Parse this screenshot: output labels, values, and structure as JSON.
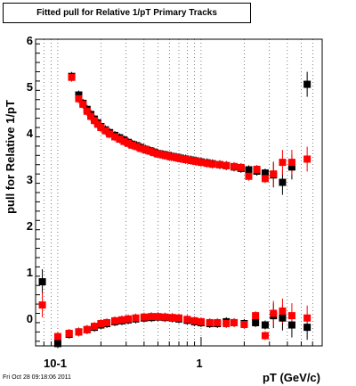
{
  "title": "Fitted pull for Relative 1/pT  Primary Tracks",
  "footer": "Fri Oct 28 09:18:06 2011",
  "chart_data": {
    "type": "scatter",
    "title": "Fitted pull for Relative 1/pT  Primary Tracks",
    "xlabel": "pT (GeV/c)",
    "ylabel": "pull for Relative 1/pT",
    "x_scale": "log",
    "xlim": [
      0.07,
      7
    ],
    "ylim": [
      -0.6,
      6
    ],
    "x_tick_labels": [
      "10-1",
      "1"
    ],
    "y_tick_labels": [
      "0",
      "1",
      "2",
      "3",
      "4",
      "5",
      "6"
    ],
    "grid": true,
    "colors": {
      "series_black": "#000000",
      "series_red": "#ff0000"
    },
    "series": [
      {
        "color": "black",
        "marker": "square",
        "points": [
          {
            "x": 0.125,
            "y": 5.2
          },
          {
            "x": 0.14,
            "y": 4.8
          },
          {
            "x": 0.15,
            "y": 4.62
          },
          {
            "x": 0.16,
            "y": 4.49
          },
          {
            "x": 0.17,
            "y": 4.38
          },
          {
            "x": 0.18,
            "y": 4.28
          },
          {
            "x": 0.19,
            "y": 4.2
          },
          {
            "x": 0.2,
            "y": 4.12
          },
          {
            "x": 0.215,
            "y": 4.05
          },
          {
            "x": 0.23,
            "y": 3.99
          },
          {
            "x": 0.25,
            "y": 3.93
          },
          {
            "x": 0.27,
            "y": 3.88
          },
          {
            "x": 0.29,
            "y": 3.83
          },
          {
            "x": 0.31,
            "y": 3.78
          },
          {
            "x": 0.33,
            "y": 3.74
          },
          {
            "x": 0.355,
            "y": 3.71
          },
          {
            "x": 0.38,
            "y": 3.67
          },
          {
            "x": 0.41,
            "y": 3.63
          },
          {
            "x": 0.44,
            "y": 3.6
          },
          {
            "x": 0.47,
            "y": 3.57
          },
          {
            "x": 0.5,
            "y": 3.54
          },
          {
            "x": 0.54,
            "y": 3.52
          },
          {
            "x": 0.58,
            "y": 3.5
          },
          {
            "x": 0.62,
            "y": 3.48
          },
          {
            "x": 0.67,
            "y": 3.46
          },
          {
            "x": 0.72,
            "y": 3.44
          },
          {
            "x": 0.78,
            "y": 3.42
          },
          {
            "x": 0.85,
            "y": 3.4
          },
          {
            "x": 0.92,
            "y": 3.38
          },
          {
            "x": 1.0,
            "y": 3.36
          },
          {
            "x": 1.1,
            "y": 3.34
          },
          {
            "x": 1.2,
            "y": 3.32
          },
          {
            "x": 1.35,
            "y": 3.3
          },
          {
            "x": 1.5,
            "y": 3.28
          },
          {
            "x": 1.7,
            "y": 3.25
          },
          {
            "x": 1.9,
            "y": 3.22
          },
          {
            "x": 2.15,
            "y": 3.19
          },
          {
            "x": 2.45,
            "y": 3.16
          },
          {
            "x": 2.8,
            "y": 3.12
          },
          {
            "x": 3.2,
            "y": 3.08
          },
          {
            "x": 3.7,
            "y": 2.92
          },
          {
            "x": 4.3,
            "y": 3.25
          },
          {
            "x": 5.5,
            "y": 5.03
          },
          {
            "x": 0.078,
            "y": 0.78
          },
          {
            "x": 0.1,
            "y": -0.55
          },
          {
            "x": 0.12,
            "y": -0.35
          },
          {
            "x": 0.14,
            "y": -0.3
          },
          {
            "x": 0.16,
            "y": -0.25
          },
          {
            "x": 0.18,
            "y": -0.2
          },
          {
            "x": 0.2,
            "y": -0.15
          },
          {
            "x": 0.22,
            "y": -0.12
          },
          {
            "x": 0.25,
            "y": -0.08
          },
          {
            "x": 0.28,
            "y": -0.06
          },
          {
            "x": 0.31,
            "y": -0.04
          },
          {
            "x": 0.35,
            "y": -0.02
          },
          {
            "x": 0.4,
            "y": 0.0
          },
          {
            "x": 0.45,
            "y": 0.01
          },
          {
            "x": 0.5,
            "y": 0.02
          },
          {
            "x": 0.56,
            "y": 0.01
          },
          {
            "x": 0.63,
            "y": 0.0
          },
          {
            "x": 0.7,
            "y": -0.02
          },
          {
            "x": 0.8,
            "y": -0.05
          },
          {
            "x": 0.9,
            "y": -0.08
          },
          {
            "x": 1.0,
            "y": -0.1
          },
          {
            "x": 1.15,
            "y": -0.12
          },
          {
            "x": 1.3,
            "y": -0.12
          },
          {
            "x": 1.5,
            "y": -0.08
          },
          {
            "x": 1.7,
            "y": -0.1
          },
          {
            "x": 2.0,
            "y": -0.12
          },
          {
            "x": 2.4,
            "y": -0.1
          },
          {
            "x": 2.8,
            "y": -0.15
          },
          {
            "x": 3.2,
            "y": 0.05
          },
          {
            "x": 3.7,
            "y": 0.0
          },
          {
            "x": 4.3,
            "y": -0.15
          },
          {
            "x": 5.5,
            "y": -0.2
          }
        ]
      },
      {
        "color": "red",
        "marker": "square",
        "points": [
          {
            "x": 0.125,
            "y": 5.18
          },
          {
            "x": 0.14,
            "y": 4.72
          },
          {
            "x": 0.15,
            "y": 4.6
          },
          {
            "x": 0.16,
            "y": 4.45
          },
          {
            "x": 0.17,
            "y": 4.34
          },
          {
            "x": 0.18,
            "y": 4.25
          },
          {
            "x": 0.19,
            "y": 4.17
          },
          {
            "x": 0.2,
            "y": 4.1
          },
          {
            "x": 0.215,
            "y": 4.03
          },
          {
            "x": 0.23,
            "y": 3.96
          },
          {
            "x": 0.25,
            "y": 3.9
          },
          {
            "x": 0.27,
            "y": 3.85
          },
          {
            "x": 0.29,
            "y": 3.8
          },
          {
            "x": 0.31,
            "y": 3.76
          },
          {
            "x": 0.33,
            "y": 3.72
          },
          {
            "x": 0.355,
            "y": 3.69
          },
          {
            "x": 0.38,
            "y": 3.65
          },
          {
            "x": 0.41,
            "y": 3.62
          },
          {
            "x": 0.44,
            "y": 3.59
          },
          {
            "x": 0.47,
            "y": 3.56
          },
          {
            "x": 0.5,
            "y": 3.53
          },
          {
            "x": 0.54,
            "y": 3.51
          },
          {
            "x": 0.58,
            "y": 3.49
          },
          {
            "x": 0.62,
            "y": 3.47
          },
          {
            "x": 0.67,
            "y": 3.45
          },
          {
            "x": 0.72,
            "y": 3.43
          },
          {
            "x": 0.78,
            "y": 3.41
          },
          {
            "x": 0.85,
            "y": 3.39
          },
          {
            "x": 0.92,
            "y": 3.37
          },
          {
            "x": 1.0,
            "y": 3.35
          },
          {
            "x": 1.1,
            "y": 3.33
          },
          {
            "x": 1.2,
            "y": 3.31
          },
          {
            "x": 1.35,
            "y": 3.3
          },
          {
            "x": 1.5,
            "y": 3.28
          },
          {
            "x": 1.7,
            "y": 3.26
          },
          {
            "x": 1.9,
            "y": 3.24
          },
          {
            "x": 2.15,
            "y": 3.05
          },
          {
            "x": 2.45,
            "y": 3.2
          },
          {
            "x": 2.8,
            "y": 3.0
          },
          {
            "x": 3.2,
            "y": 3.1
          },
          {
            "x": 3.7,
            "y": 3.35
          },
          {
            "x": 4.3,
            "y": 3.35
          },
          {
            "x": 5.5,
            "y": 3.42
          },
          {
            "x": 0.078,
            "y": 0.28
          },
          {
            "x": 0.1,
            "y": -0.4
          },
          {
            "x": 0.12,
            "y": -0.33
          },
          {
            "x": 0.14,
            "y": -0.3
          },
          {
            "x": 0.16,
            "y": -0.25
          },
          {
            "x": 0.18,
            "y": -0.18
          },
          {
            "x": 0.2,
            "y": -0.12
          },
          {
            "x": 0.22,
            "y": -0.1
          },
          {
            "x": 0.25,
            "y": -0.06
          },
          {
            "x": 0.28,
            "y": -0.04
          },
          {
            "x": 0.31,
            "y": -0.02
          },
          {
            "x": 0.35,
            "y": 0.0
          },
          {
            "x": 0.4,
            "y": 0.02
          },
          {
            "x": 0.45,
            "y": 0.03
          },
          {
            "x": 0.5,
            "y": 0.03
          },
          {
            "x": 0.56,
            "y": 0.02
          },
          {
            "x": 0.63,
            "y": 0.01
          },
          {
            "x": 0.7,
            "y": 0.0
          },
          {
            "x": 0.8,
            "y": -0.03
          },
          {
            "x": 0.9,
            "y": -0.06
          },
          {
            "x": 1.0,
            "y": -0.08
          },
          {
            "x": 1.15,
            "y": -0.1
          },
          {
            "x": 1.3,
            "y": -0.1
          },
          {
            "x": 1.5,
            "y": -0.12
          },
          {
            "x": 1.7,
            "y": -0.1
          },
          {
            "x": 2.0,
            "y": -0.14
          },
          {
            "x": 2.4,
            "y": 0.05
          },
          {
            "x": 2.8,
            "y": -0.38
          },
          {
            "x": 3.2,
            "y": 0.1
          },
          {
            "x": 3.7,
            "y": 0.15
          },
          {
            "x": 4.3,
            "y": 0.05
          },
          {
            "x": 5.5,
            "y": 0.0
          }
        ]
      }
    ]
  }
}
